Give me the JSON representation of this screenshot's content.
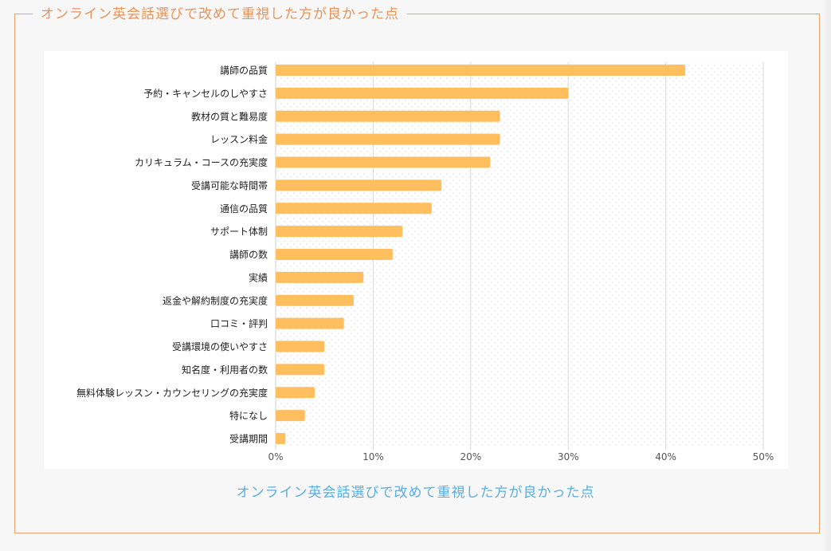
{
  "fieldset": {
    "title": "オンライン英会話選びで改めて重視した方が良かった点"
  },
  "caption": "オンライン英会話選びで改めて重視した方が良かった点",
  "chart_data": {
    "type": "bar",
    "orientation": "horizontal",
    "categories": [
      "講師の品質",
      "予約・キャンセルのしやすさ",
      "教材の質と難易度",
      "レッスン料金",
      "カリキュラム・コースの充実度",
      "受講可能な時間帯",
      "通信の品質",
      "サポート体制",
      "講師の数",
      "実績",
      "返金や解約制度の充実度",
      "口コミ・評判",
      "受講環境の使いやすさ",
      "知名度・利用者の数",
      "無料体験レッスン・カウンセリングの充実度",
      "特になし",
      "受講期間"
    ],
    "values": [
      42,
      30,
      23,
      23,
      22,
      17,
      16,
      13,
      12,
      9,
      8,
      7,
      5,
      5,
      4,
      3,
      1
    ],
    "x_ticks": [
      "0%",
      "10%",
      "20%",
      "30%",
      "40%",
      "50%"
    ],
    "xlim": [
      0,
      50
    ],
    "unit": "%",
    "grid": true,
    "bar_color": "#ffbf5f",
    "title": "",
    "xlabel": "",
    "ylabel": ""
  }
}
